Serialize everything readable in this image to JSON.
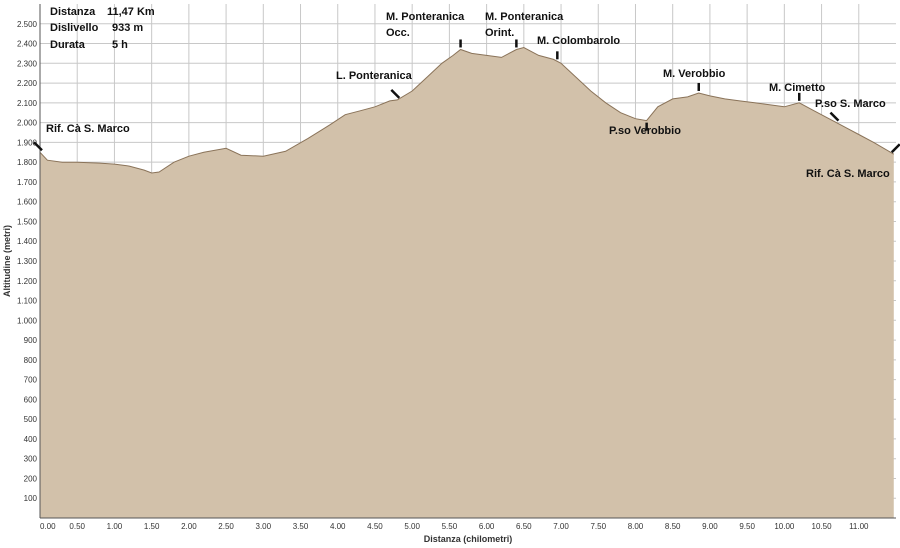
{
  "info": {
    "distance_label": "Distanza",
    "distance_value": "11,47 Km",
    "elevation_label": "Dislivello",
    "elevation_value": "933 m",
    "duration_label": "Durata",
    "duration_value": "5 h"
  },
  "chart_data": {
    "type": "area",
    "xlabel": "Distanza (chilometri)",
    "ylabel": "Altitudine (metri)",
    "xlim": [
      0,
      11.5
    ],
    "ylim": [
      0,
      2600
    ],
    "x_ticks": [
      "0.00",
      "0.50",
      "1.00",
      "1.50",
      "2.00",
      "2.50",
      "3.00",
      "3.50",
      "4.00",
      "4.50",
      "5.00",
      "5.50",
      "6.00",
      "6.50",
      "7.00",
      "7.50",
      "8.00",
      "8.50",
      "9.00",
      "9.50",
      "10.00",
      "10.50",
      "11.00"
    ],
    "y_ticks": [
      "100",
      "200",
      "300",
      "400",
      "500",
      "600",
      "700",
      "800",
      "900",
      "1.000",
      "1.100",
      "1.200",
      "1.300",
      "1.400",
      "1.500",
      "1.600",
      "1.700",
      "1.800",
      "1.900",
      "2.000",
      "2.100",
      "2.200",
      "2.300",
      "2.400",
      "2.500"
    ],
    "grid": true,
    "colors": {
      "fill": "#d2c1aa",
      "stroke": "#8a7359",
      "grid": "#c8c8c8"
    },
    "x": [
      0.0,
      0.1,
      0.3,
      0.5,
      0.8,
      1.0,
      1.2,
      1.4,
      1.5,
      1.6,
      1.8,
      2.0,
      2.2,
      2.5,
      2.7,
      3.0,
      3.3,
      3.6,
      3.9,
      4.1,
      4.3,
      4.5,
      4.7,
      4.8,
      5.0,
      5.2,
      5.4,
      5.55,
      5.65,
      5.8,
      6.0,
      6.2,
      6.4,
      6.5,
      6.7,
      6.9,
      7.0,
      7.2,
      7.4,
      7.6,
      7.8,
      8.0,
      8.15,
      8.3,
      8.5,
      8.7,
      8.85,
      9.0,
      9.2,
      9.4,
      9.6,
      9.8,
      10.0,
      10.2,
      10.4,
      10.6,
      10.8,
      11.0,
      11.2,
      11.47
    ],
    "y": [
      1850,
      1810,
      1800,
      1800,
      1795,
      1790,
      1780,
      1760,
      1745,
      1750,
      1800,
      1830,
      1850,
      1870,
      1835,
      1830,
      1855,
      1920,
      1990,
      2040,
      2060,
      2080,
      2110,
      2115,
      2160,
      2230,
      2300,
      2340,
      2370,
      2350,
      2340,
      2330,
      2370,
      2380,
      2340,
      2320,
      2300,
      2230,
      2160,
      2100,
      2050,
      2020,
      2010,
      2080,
      2120,
      2130,
      2150,
      2135,
      2120,
      2110,
      2100,
      2090,
      2080,
      2100,
      2060,
      2020,
      1980,
      1940,
      1900,
      1840
    ],
    "annotations": [
      {
        "label": "Rif. Cà S. Marco",
        "x": 0.0
      },
      {
        "label": "L. Ponteranica",
        "x": 4.8
      },
      {
        "label": "M. Ponteranica",
        "label2": "Occ.",
        "x": 5.65
      },
      {
        "label": "M. Ponteranica",
        "label2": "Orint.",
        "x": 6.4
      },
      {
        "label": "M. Colombarolo",
        "x": 6.95
      },
      {
        "label": "P.so Verobbio",
        "x": 8.15
      },
      {
        "label": "M. Verobbio",
        "x": 8.85
      },
      {
        "label": "M. Cimetto",
        "x": 10.2
      },
      {
        "label": "P.so S. Marco",
        "x": 10.7
      },
      {
        "label": "Rif. Cà S. Marco",
        "x": 11.47
      }
    ]
  }
}
